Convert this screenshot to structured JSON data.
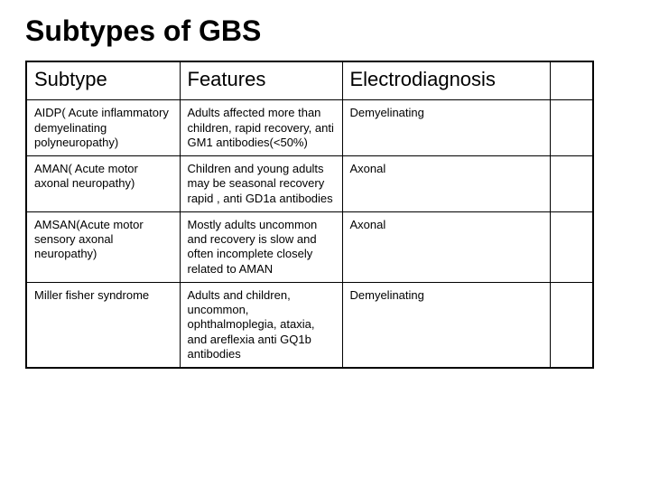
{
  "title": "Subtypes of GBS",
  "table": {
    "columns": [
      "Subtype",
      "Features",
      "Electrodiagnosis"
    ],
    "rows": [
      {
        "subtype": "AIDP( Acute inflammatory demyelinating polyneuropathy)",
        "features": "Adults affected more than children, rapid recovery, anti GM1 antibodies(<50%)",
        "electrodiagnosis": "Demyelinating"
      },
      {
        "subtype": "AMAN( Acute motor axonal neuropathy)",
        "features": "Children and young adults may be seasonal recovery rapid , anti GD1a antibodies",
        "electrodiagnosis": "Axonal"
      },
      {
        "subtype": "AMSAN(Acute motor sensory axonal neuropathy)",
        "features": "Mostly adults uncommon and recovery is slow and often incomplete closely related to AMAN",
        "electrodiagnosis": "Axonal"
      },
      {
        "subtype": "Miller fisher syndrome",
        "features": "Adults and children, uncommon, ophthalmoplegia, ataxia, and areflexia anti GQ1b antibodies",
        "electrodiagnosis": "Demyelinating"
      }
    ]
  }
}
